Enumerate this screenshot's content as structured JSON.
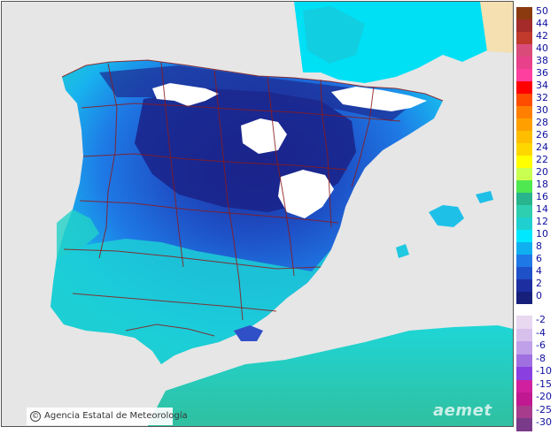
{
  "map": {
    "regions": [
      "iberian-peninsula",
      "balearic-islands",
      "north-africa",
      "mediterranean-sea",
      "atlantic-ocean",
      "bay-of-biscay",
      "france"
    ]
  },
  "credit": {
    "text": "Agencia Estatal de Meteorología",
    "icon": "copyright-icon"
  },
  "brand": {
    "text": "aemet"
  },
  "legend": {
    "positive": [
      {
        "label": "50",
        "color": "#8b3a0f"
      },
      {
        "label": "44",
        "color": "#a52a2a"
      },
      {
        "label": "42",
        "color": "#c0392b"
      },
      {
        "label": "40",
        "color": "#d94c7a"
      },
      {
        "label": "38",
        "color": "#e8408a"
      },
      {
        "label": "36",
        "color": "#ff3fa0"
      },
      {
        "label": "34",
        "color": "#ff0000"
      },
      {
        "label": "32",
        "color": "#ff4d00"
      },
      {
        "label": "30",
        "color": "#ff8000"
      },
      {
        "label": "28",
        "color": "#ffa000"
      },
      {
        "label": "26",
        "color": "#ffbf00"
      },
      {
        "label": "24",
        "color": "#ffd700"
      },
      {
        "label": "22",
        "color": "#ffff00"
      },
      {
        "label": "20",
        "color": "#c8ff50"
      },
      {
        "label": "18",
        "color": "#50e850"
      },
      {
        "label": "16",
        "color": "#28b48c"
      },
      {
        "label": "14",
        "color": "#2ecfb0"
      },
      {
        "label": "12",
        "color": "#20d0d0"
      },
      {
        "label": "10",
        "color": "#00e8ff"
      },
      {
        "label": "8",
        "color": "#10b0f0"
      },
      {
        "label": "6",
        "color": "#1e78e6"
      },
      {
        "label": "4",
        "color": "#1e50c8"
      },
      {
        "label": "2",
        "color": "#1c2ea0"
      },
      {
        "label": "0",
        "color": "#16207a"
      }
    ],
    "negative": [
      {
        "label": "-2",
        "color": "#e8d8f0"
      },
      {
        "label": "-4",
        "color": "#d8c0ec"
      },
      {
        "label": "-6",
        "color": "#c0a0e8"
      },
      {
        "label": "-8",
        "color": "#a070e0"
      },
      {
        "label": "-10",
        "color": "#8a40e0"
      },
      {
        "label": "-15",
        "color": "#d020a0"
      },
      {
        "label": "-20",
        "color": "#c01890"
      },
      {
        "label": "-25",
        "color": "#a83c8c"
      },
      {
        "label": "-30",
        "color": "#7a3a8a"
      }
    ]
  }
}
